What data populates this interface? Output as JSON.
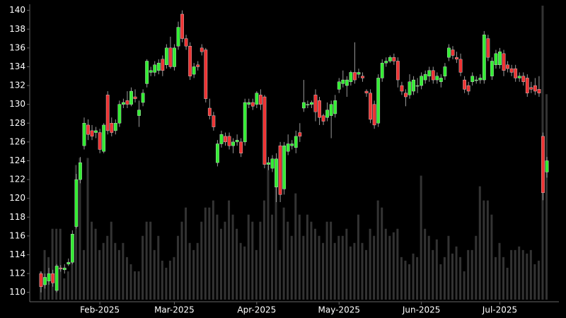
{
  "chart_data": {
    "type": "candlestick",
    "categories": [
      null,
      null,
      null,
      null,
      null,
      null,
      null,
      null,
      null,
      null,
      null,
      null,
      null,
      null,
      null,
      "Feb-2025",
      null,
      null,
      null,
      null,
      null,
      null,
      null,
      null,
      null,
      null,
      null,
      null,
      null,
      null,
      null,
      null,
      null,
      null,
      "Mar-2025",
      null,
      null,
      null,
      null,
      null,
      null,
      null,
      null,
      null,
      null,
      null,
      null,
      null,
      null,
      null,
      null,
      null,
      null,
      null,
      null,
      "Apr-2025",
      null,
      null,
      null,
      null,
      null,
      null,
      null,
      null,
      null,
      null,
      null,
      null,
      null,
      null,
      null,
      null,
      null,
      null,
      null,
      null,
      "May-2025",
      null,
      null,
      null,
      null,
      null,
      null,
      null,
      null,
      null,
      null,
      null,
      null,
      null,
      null,
      null,
      null,
      null,
      null,
      null,
      null,
      "Jun-2025",
      null,
      null,
      null,
      null,
      null,
      null,
      null,
      null,
      null,
      null,
      null,
      null,
      null,
      null,
      null,
      null,
      null,
      null,
      null,
      "Jul-2025",
      null,
      null,
      null,
      null,
      null,
      null,
      null,
      null,
      null,
      null,
      null,
      null
    ],
    "open": [
      112.0,
      110.8,
      111.2,
      112.0,
      110.2,
      112.6,
      112.4,
      113.0,
      113.2,
      117.0,
      122.0,
      125.6,
      127.8,
      127.2,
      127.0,
      127.0,
      125.0,
      131.0,
      128.0,
      127.2,
      128.0,
      130.0,
      130.4,
      130.0,
      130.8,
      128.8,
      130.2,
      132.2,
      133.4,
      133.4,
      133.6,
      134.8,
      134.2,
      136.0,
      134.0,
      136.2,
      139.6,
      137.0,
      136.2,
      133.2,
      134.2,
      136.0,
      135.8,
      129.6,
      128.8,
      123.8,
      125.8,
      126.6,
      126.6,
      125.6,
      126.0,
      126.0,
      126.0,
      130.0,
      130.2,
      130.0,
      131.0,
      130.8,
      123.6,
      123.2,
      121.2,
      125.6,
      121.0,
      125.0,
      125.6,
      125.4,
      127.0,
      129.6,
      130.0,
      130.0,
      131.0,
      130.4,
      128.8,
      128.6,
      128.8,
      129.0,
      131.6,
      132.2,
      132.0,
      132.4,
      133.4,
      133.2,
      133.0,
      131.4,
      131.2,
      130.0,
      128.0,
      132.8,
      134.4,
      134.6,
      135.0,
      134.6,
      132.0,
      131.2,
      131.0,
      131.4,
      132.0,
      132.0,
      132.6,
      133.0,
      133.6,
      132.6,
      132.4,
      133.0,
      135.0,
      135.8,
      135.0,
      134.8,
      132.6,
      132.0,
      132.4,
      132.6,
      132.6,
      132.6,
      137.0,
      133.0,
      134.2,
      134.2,
      135.4,
      134.2,
      133.8,
      133.8,
      132.8,
      133.0,
      132.8,
      131.8,
      132.0,
      131.6,
      126.6,
      122.8
    ],
    "high": [
      112.2,
      112.0,
      112.6,
      112.4,
      113.0,
      112.9,
      113.0,
      113.6,
      116.6,
      122.6,
      124.4,
      128.6,
      128.4,
      127.8,
      127.6,
      127.4,
      128.0,
      131.4,
      128.6,
      128.4,
      130.4,
      130.6,
      131.4,
      131.8,
      131.6,
      130.4,
      131.6,
      134.8,
      134.0,
      134.6,
      134.8,
      135.2,
      136.4,
      137.2,
      136.4,
      138.8,
      140.0,
      137.4,
      136.6,
      134.4,
      134.6,
      136.4,
      136.0,
      130.6,
      129.2,
      126.2,
      127.2,
      127.0,
      127.0,
      126.4,
      126.8,
      126.4,
      130.6,
      130.6,
      130.6,
      131.4,
      131.6,
      131.0,
      124.4,
      124.6,
      124.8,
      126.0,
      126.0,
      126.8,
      126.2,
      127.2,
      128.0,
      132.6,
      130.4,
      130.4,
      131.6,
      130.8,
      129.0,
      130.2,
      130.4,
      131.0,
      132.8,
      133.6,
      133.0,
      133.6,
      136.6,
      133.8,
      133.4,
      131.6,
      131.6,
      130.4,
      133.2,
      134.8,
      135.0,
      135.2,
      135.4,
      135.0,
      132.4,
      131.6,
      133.2,
      133.0,
      132.8,
      133.4,
      133.6,
      134.0,
      134.0,
      133.4,
      133.2,
      134.4,
      136.4,
      136.2,
      135.6,
      135.4,
      133.0,
      132.4,
      133.4,
      133.0,
      133.2,
      137.8,
      137.4,
      135.0,
      135.8,
      136.0,
      135.8,
      134.6,
      134.2,
      134.2,
      133.4,
      133.4,
      133.2,
      132.4,
      132.8,
      133.0,
      127.0,
      124.4
    ],
    "low": [
      110.0,
      110.4,
      110.8,
      110.6,
      110.0,
      112.2,
      112.0,
      112.8,
      113.0,
      116.8,
      121.6,
      125.2,
      126.2,
      126.2,
      126.4,
      124.8,
      124.8,
      126.8,
      126.6,
      126.8,
      127.6,
      129.6,
      129.6,
      129.8,
      130.2,
      127.6,
      129.8,
      131.8,
      133.0,
      133.0,
      133.2,
      133.0,
      133.8,
      133.8,
      133.6,
      135.8,
      136.6,
      135.8,
      132.6,
      132.8,
      133.6,
      135.2,
      130.2,
      128.4,
      127.2,
      123.4,
      125.4,
      125.6,
      125.2,
      124.8,
      125.6,
      124.4,
      125.6,
      129.6,
      129.4,
      129.6,
      129.4,
      123.2,
      123.0,
      122.8,
      119.6,
      119.6,
      120.4,
      124.6,
      125.2,
      124.8,
      126.0,
      129.2,
      129.6,
      129.6,
      128.2,
      127.8,
      127.8,
      128.2,
      126.4,
      128.6,
      131.2,
      131.8,
      130.8,
      132.0,
      132.2,
      132.8,
      132.4,
      130.8,
      128.0,
      127.4,
      127.6,
      132.4,
      134.0,
      134.4,
      134.2,
      131.8,
      131.0,
      129.8,
      130.6,
      131.0,
      131.2,
      131.6,
      132.2,
      132.4,
      132.2,
      132.2,
      131.8,
      132.6,
      134.6,
      134.8,
      134.4,
      133.0,
      131.2,
      131.0,
      132.0,
      132.2,
      132.2,
      132.2,
      134.6,
      132.6,
      133.8,
      133.8,
      133.0,
      133.4,
      133.0,
      132.4,
      132.4,
      132.0,
      130.8,
      131.2,
      131.0,
      130.8,
      119.8,
      122.2
    ],
    "close": [
      110.6,
      111.6,
      112.0,
      111.0,
      112.8,
      112.5,
      112.6,
      113.2,
      116.2,
      122.0,
      123.8,
      128.0,
      126.8,
      126.6,
      127.2,
      125.2,
      127.8,
      127.2,
      127.0,
      128.0,
      130.0,
      130.2,
      130.0,
      131.4,
      130.6,
      129.4,
      131.2,
      134.6,
      133.6,
      134.2,
      134.4,
      133.6,
      136.0,
      134.0,
      136.0,
      138.2,
      137.0,
      136.2,
      133.0,
      134.0,
      134.0,
      135.6,
      130.6,
      128.8,
      127.6,
      125.8,
      126.8,
      126.0,
      125.6,
      126.0,
      126.2,
      124.8,
      130.2,
      130.2,
      129.8,
      131.2,
      130.0,
      123.6,
      123.8,
      124.2,
      124.2,
      120.4,
      125.6,
      125.8,
      125.8,
      126.6,
      126.6,
      130.2,
      130.0,
      130.2,
      129.2,
      128.6,
      128.2,
      129.4,
      130.0,
      130.4,
      132.4,
      132.6,
      132.6,
      133.4,
      132.6,
      133.4,
      132.8,
      131.2,
      128.4,
      127.8,
      132.8,
      134.4,
      134.6,
      135.0,
      134.6,
      132.6,
      131.4,
      130.8,
      132.4,
      132.6,
      132.0,
      133.0,
      133.2,
      133.6,
      132.6,
      133.0,
      132.8,
      134.0,
      136.0,
      135.2,
      134.8,
      133.4,
      131.6,
      131.4,
      133.0,
      132.6,
      132.8,
      137.4,
      135.0,
      134.6,
      135.4,
      135.6,
      133.6,
      133.8,
      133.4,
      132.8,
      133.0,
      132.4,
      131.2,
      131.6,
      131.4,
      131.2,
      120.6,
      124.0
    ],
    "volume": [
      40,
      70,
      60,
      100,
      100,
      100,
      30,
      40,
      80,
      190,
      200,
      70,
      200,
      110,
      100,
      70,
      80,
      90,
      110,
      80,
      70,
      80,
      60,
      50,
      40,
      40,
      90,
      110,
      110,
      70,
      90,
      55,
      45,
      55,
      60,
      90,
      110,
      130,
      80,
      70,
      80,
      110,
      130,
      130,
      140,
      120,
      100,
      110,
      140,
      120,
      100,
      80,
      75,
      120,
      110,
      70,
      110,
      140,
      190,
      120,
      160,
      70,
      130,
      110,
      90,
      150,
      120,
      90,
      120,
      110,
      100,
      90,
      80,
      110,
      110,
      80,
      90,
      90,
      100,
      75,
      80,
      120,
      80,
      70,
      100,
      90,
      140,
      130,
      100,
      90,
      95,
      100,
      60,
      55,
      50,
      65,
      60,
      175,
      100,
      90,
      70,
      85,
      50,
      60,
      90,
      65,
      75,
      60,
      40,
      70,
      70,
      90,
      160,
      140,
      140,
      120,
      60,
      80,
      60,
      45,
      70,
      70,
      75,
      70,
      65,
      70,
      50,
      55,
      415,
      290
    ],
    "up_color": "#33ee33",
    "down_color": "#ee3333",
    "volume_color": "#333333",
    "ylim": [
      109,
      140.5
    ],
    "yticks": [
      110,
      112,
      114,
      116,
      118,
      120,
      122,
      124,
      126,
      128,
      130,
      132,
      134,
      136,
      138,
      140
    ]
  }
}
